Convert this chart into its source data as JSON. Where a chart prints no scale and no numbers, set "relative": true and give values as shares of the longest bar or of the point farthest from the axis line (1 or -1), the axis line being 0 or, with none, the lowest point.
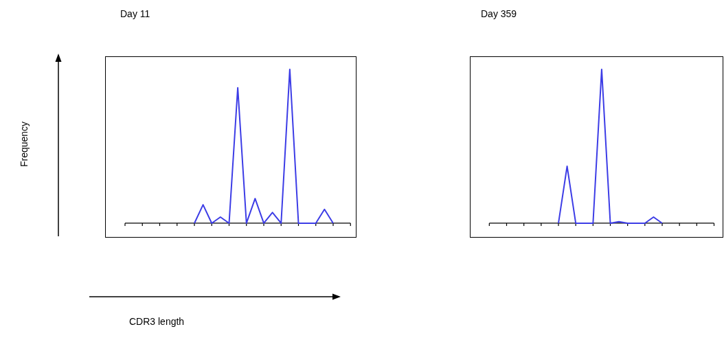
{
  "chart_data": [
    {
      "type": "line",
      "title": "Day 11",
      "xlabel": "CDR3 length",
      "ylabel": "Frequency",
      "relative": true,
      "legend": false,
      "grid": false,
      "marker": "none",
      "categories": [
        null,
        null,
        null,
        null,
        null,
        null,
        null,
        null,
        null,
        null,
        null,
        null,
        null,
        null,
        null,
        null,
        null
      ],
      "series": [
        {
          "color": "#3c3ce6",
          "values": [
            0,
            0.12,
            0,
            0.04,
            0,
            0.88,
            0,
            0.16,
            0,
            0.07,
            0,
            1,
            0,
            0,
            0,
            0.09,
            0
          ]
        }
      ]
    },
    {
      "type": "line",
      "title": "Day 359",
      "relative": true,
      "legend": false,
      "grid": false,
      "marker": "none",
      "categories": [
        null,
        null,
        null,
        null,
        null,
        null,
        null,
        null,
        null,
        null,
        null,
        null,
        null
      ],
      "series": [
        {
          "color": "#3c3ce6",
          "values": [
            0,
            0.37,
            0,
            0,
            0,
            1,
            0,
            0.01,
            0,
            0,
            0,
            0.04,
            0
          ]
        }
      ]
    }
  ]
}
